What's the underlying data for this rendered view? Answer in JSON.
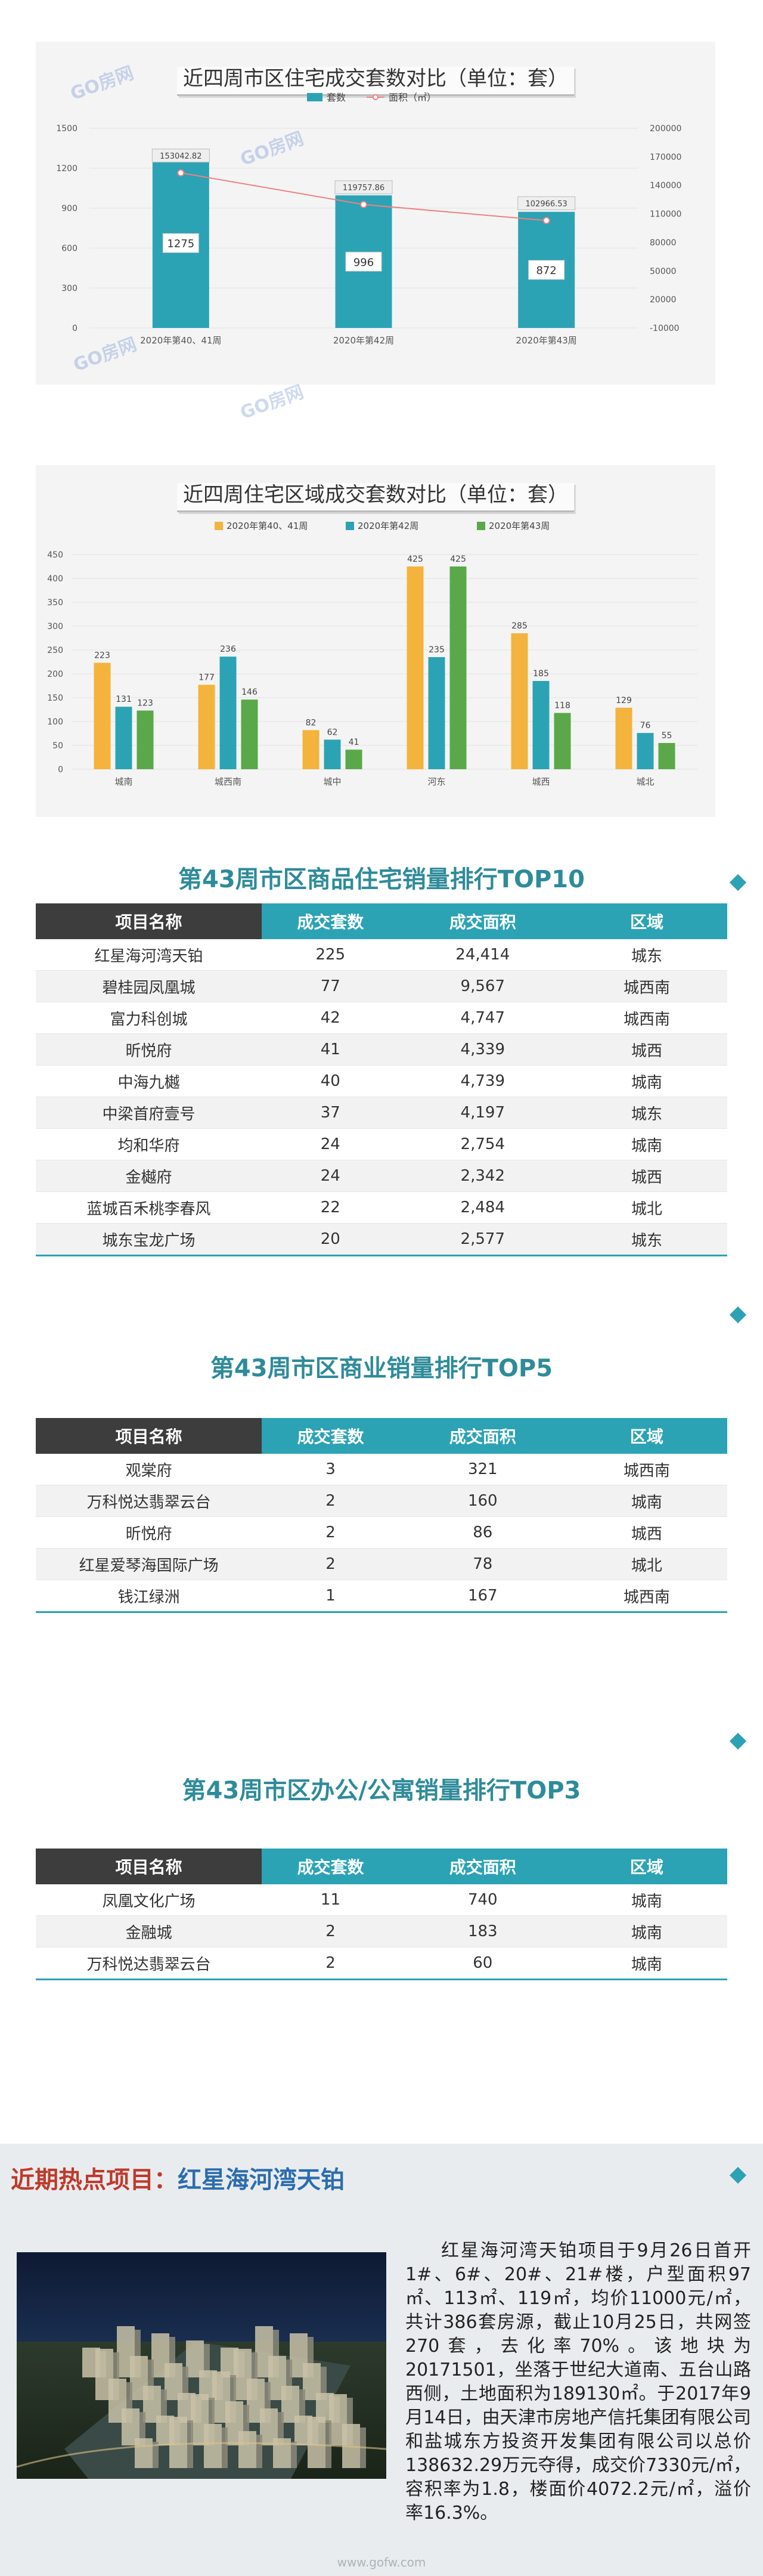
{
  "chart1": {
    "title": "近四周市区住宅成交套数对比（单位：套）",
    "legend": [
      "套数",
      "面积（㎡）"
    ],
    "chart_data": {
      "type": "bar",
      "categories": [
        "2020年第40、41周",
        "2020年第42周",
        "2020年第43周"
      ],
      "series": [
        {
          "name": "套数",
          "values": [
            1275,
            996,
            872
          ]
        },
        {
          "name": "面积（㎡）",
          "values": [
            153042.82,
            119757.86,
            102966.53
          ]
        }
      ],
      "ylim": [
        0,
        1500
      ],
      "y_ticks": [
        0,
        300,
        600,
        900,
        1200,
        1500
      ],
      "y2lim": [
        -10000,
        200000
      ],
      "y2_ticks": [
        -10000,
        20000,
        50000,
        80000,
        110000,
        140000,
        170000,
        200000
      ]
    }
  },
  "chart2": {
    "title": "近四周住宅区域成交套数对比（单位：套）",
    "chart_data": {
      "type": "bar",
      "categories": [
        "城南",
        "城西南",
        "城中",
        "河东",
        "城西",
        "城北"
      ],
      "series": [
        {
          "name": "2020年第40、41周",
          "values": [
            223,
            177,
            82,
            425,
            285,
            129
          ]
        },
        {
          "name": "2020年第42周",
          "values": [
            131,
            236,
            62,
            235,
            185,
            76
          ]
        },
        {
          "name": "2020年第43周",
          "values": [
            123,
            146,
            41,
            425,
            118,
            55
          ]
        }
      ],
      "ylim": [
        0,
        450
      ],
      "y_ticks": [
        0,
        50,
        100,
        150,
        200,
        250,
        300,
        350,
        400,
        450
      ]
    }
  },
  "colors": {
    "teal": "#2ba3b4",
    "orange": "#f4b33c",
    "green": "#5aa84a",
    "dark": "#3d3d3d",
    "red_line": "#f08080"
  },
  "watermark": "GO房网",
  "top10": {
    "title": "第43周市区商品住宅销量排行TOP10",
    "headers": [
      "项目名称",
      "成交套数",
      "成交面积",
      "区域"
    ],
    "rows": [
      [
        "红星海河湾天铂",
        "225",
        "24,414",
        "城东"
      ],
      [
        "碧桂园凤凰城",
        "77",
        "9,567",
        "城西南"
      ],
      [
        "富力科创城",
        "42",
        "4,747",
        "城西南"
      ],
      [
        "昕悦府",
        "41",
        "4,339",
        "城西"
      ],
      [
        "中海九樾",
        "40",
        "4,739",
        "城南"
      ],
      [
        "中梁首府壹号",
        "37",
        "4,197",
        "城东"
      ],
      [
        "均和华府",
        "24",
        "2,754",
        "城南"
      ],
      [
        "金樾府",
        "24",
        "2,342",
        "城西"
      ],
      [
        "蓝城百禾桃李春风",
        "22",
        "2,484",
        "城北"
      ],
      [
        "城东宝龙广场",
        "20",
        "2,577",
        "城东"
      ]
    ]
  },
  "top5": {
    "title": "第43周市区商业销量排行TOP5",
    "headers": [
      "项目名称",
      "成交套数",
      "成交面积",
      "区域"
    ],
    "rows": [
      [
        "观棠府",
        "3",
        "321",
        "城西南"
      ],
      [
        "万科悦达翡翠云台",
        "2",
        "160",
        "城南"
      ],
      [
        "昕悦府",
        "2",
        "86",
        "城西"
      ],
      [
        "红星爱琴海国际广场",
        "2",
        "78",
        "城北"
      ],
      [
        "钱江绿洲",
        "1",
        "167",
        "城西南"
      ]
    ]
  },
  "top3": {
    "title": "第43周市区办公/公寓销量排行TOP3",
    "headers": [
      "项目名称",
      "成交套数",
      "成交面积",
      "区域"
    ],
    "rows": [
      [
        "凤凰文化广场",
        "11",
        "740",
        "城南"
      ],
      [
        "金融城",
        "2",
        "183",
        "城南"
      ],
      [
        "万科悦达翡翠云台",
        "2",
        "60",
        "城南"
      ]
    ]
  },
  "hot": {
    "title_lead": "近期热点项目：",
    "title_name": "红星海河湾天铂",
    "text": "红星海河湾天铂项目于9月26日首开1#、6#、20#、21#楼，户型面积97㎡、113㎡、119㎡，均价11000元/㎡，共计386套房源，截止10月25日，共网签270套，去化率70%。该地块为20171501，坐落于世纪大道南、五台山路西侧，土地面积为189130㎡。于2017年9月14日，由天津市房地产信托集团有限公司和盐城东方投资开发集团有限公司以总价138632.29万元夺得，成交价7330元/㎡，容积率为1.8，楼面价4072.2元/㎡，溢价率16.3%。"
  },
  "footer": "www.gofw.com"
}
